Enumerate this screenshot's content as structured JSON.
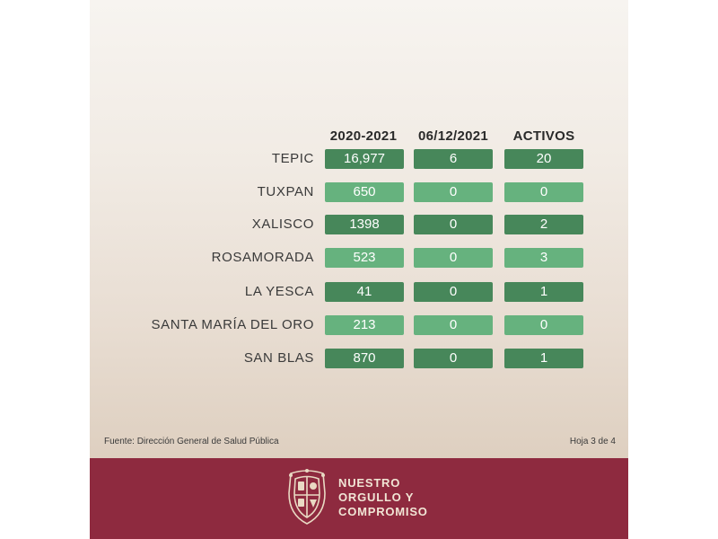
{
  "table": {
    "headers": [
      "2020-2021",
      "06/12/2021",
      "ACTIVOS"
    ],
    "rows": [
      {
        "municipio": "TEPIC",
        "values": [
          "16,977",
          "6",
          "20"
        ]
      },
      {
        "municipio": "TUXPAN",
        "values": [
          "650",
          "0",
          "0"
        ]
      },
      {
        "municipio": "XALISCO",
        "values": [
          "1398",
          "0",
          "2"
        ]
      },
      {
        "municipio": "ROSAMORADA",
        "values": [
          "523",
          "0",
          "3"
        ]
      },
      {
        "municipio": "LA YESCA",
        "values": [
          "41",
          "0",
          "1"
        ]
      },
      {
        "municipio": "SANTA MARÍA DEL ORO",
        "values": [
          "213",
          "0",
          "0"
        ]
      },
      {
        "municipio": "SAN BLAS",
        "values": [
          "870",
          "0",
          "1"
        ]
      }
    ]
  },
  "footnote": {
    "source": "Fuente: Dirección General de Salud Pública",
    "page": "Hoja 3 de 4"
  },
  "footer": {
    "motto_lines": [
      "NUESTRO",
      "ORGULLO Y",
      "COMPROMISO"
    ],
    "crest_icon": "nayarit-crest-icon"
  },
  "colors": {
    "dark_cell": "#47875a",
    "light_cell": "#66b27e",
    "footer_bg": "#8e2a3f"
  }
}
